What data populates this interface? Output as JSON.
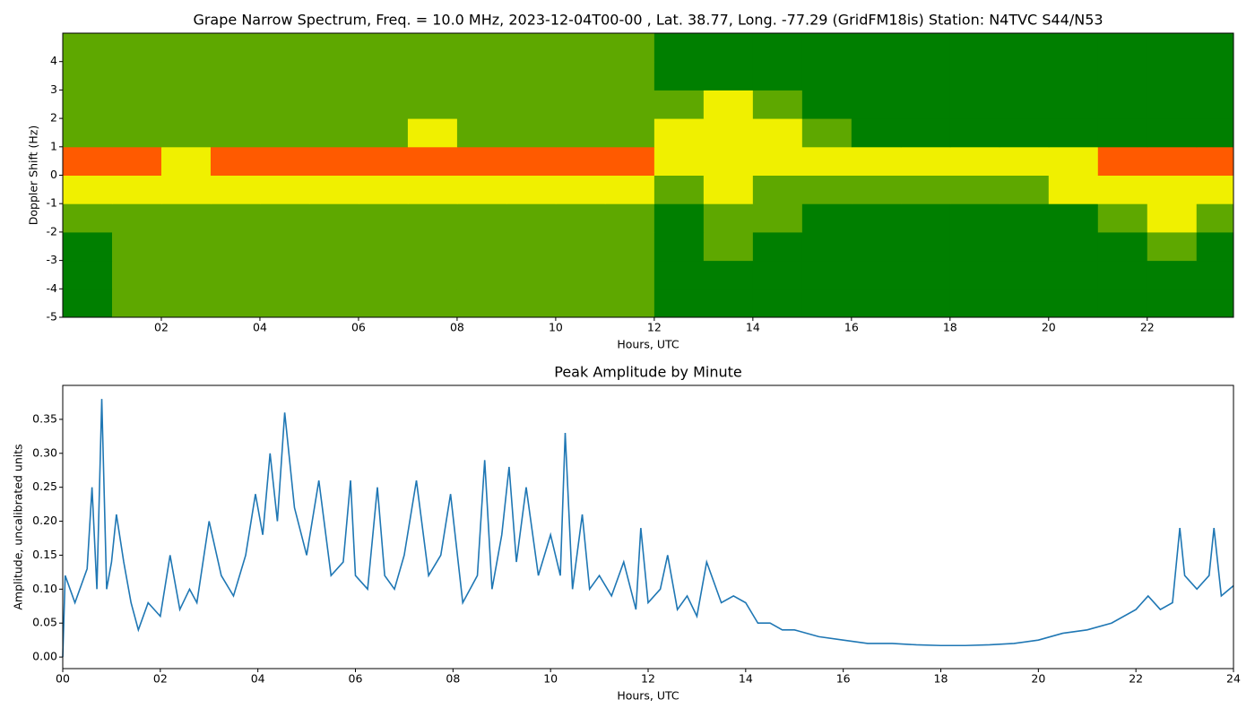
{
  "chart_data": [
    {
      "type": "heatmap",
      "title": "Grape Narrow Spectrum, Freq. = 10.0 MHz, 2023-12-04T00-00 , Lat.  38.77, Long. -77.29 (GridFM18is) Station: N4TVC S44/N53",
      "xlabel": "Hours, UTC",
      "ylabel": "Doppler Shift (Hz)",
      "xlim": [
        0,
        23.75
      ],
      "ylim": [
        -5,
        5
      ],
      "xticks": [
        {
          "value": 2,
          "label": "02"
        },
        {
          "value": 4,
          "label": "04"
        },
        {
          "value": 6,
          "label": "06"
        },
        {
          "value": 8,
          "label": "08"
        },
        {
          "value": 10,
          "label": "10"
        },
        {
          "value": 12,
          "label": "12"
        },
        {
          "value": 14,
          "label": "14"
        },
        {
          "value": 16,
          "label": "16"
        },
        {
          "value": 18,
          "label": "18"
        },
        {
          "value": 20,
          "label": "20"
        },
        {
          "value": 22,
          "label": "22"
        }
      ],
      "yticks": [
        -5,
        -4,
        -3,
        -2,
        -1,
        0,
        1,
        2,
        3,
        4
      ],
      "xbins": [
        0,
        1,
        2,
        3,
        4,
        5,
        6,
        7,
        8,
        9,
        10,
        11,
        12,
        13,
        14,
        15,
        16,
        17,
        18,
        19,
        20,
        21,
        22,
        23,
        23.75
      ],
      "ybins": [
        -5,
        -4,
        -3,
        -2,
        -1,
        0,
        1,
        2,
        3,
        4,
        5
      ],
      "colors": [
        "#007f00",
        "#5ea800",
        "#f0f000",
        "#ff5a00"
      ],
      "z": [
        [
          0,
          1,
          1,
          1,
          1,
          1,
          1,
          1,
          1,
          1,
          1,
          1,
          0,
          0,
          0,
          0,
          0,
          0,
          0,
          0,
          0,
          0,
          0,
          0
        ],
        [
          0,
          1,
          1,
          1,
          1,
          1,
          1,
          1,
          1,
          1,
          1,
          1,
          0,
          0,
          0,
          0,
          0,
          0,
          0,
          0,
          0,
          0,
          0,
          0
        ],
        [
          0,
          1,
          1,
          1,
          1,
          1,
          1,
          1,
          1,
          1,
          1,
          1,
          0,
          1,
          0,
          0,
          0,
          0,
          0,
          0,
          0,
          0,
          1,
          0
        ],
        [
          1,
          1,
          1,
          1,
          1,
          1,
          1,
          1,
          1,
          1,
          1,
          1,
          0,
          1,
          1,
          0,
          0,
          0,
          0,
          0,
          0,
          1,
          2,
          1
        ],
        [
          2,
          2,
          2,
          2,
          2,
          2,
          2,
          2,
          2,
          2,
          2,
          2,
          1,
          2,
          1,
          1,
          1,
          1,
          1,
          1,
          2,
          2,
          2,
          2
        ],
        [
          3,
          3,
          2,
          3,
          3,
          3,
          3,
          3,
          3,
          3,
          3,
          3,
          2,
          2,
          2,
          2,
          2,
          2,
          2,
          2,
          2,
          3,
          3,
          3
        ],
        [
          1,
          1,
          1,
          1,
          1,
          1,
          1,
          2,
          1,
          1,
          1,
          1,
          2,
          2,
          2,
          1,
          0,
          0,
          0,
          0,
          0,
          0,
          0,
          0
        ],
        [
          1,
          1,
          1,
          1,
          1,
          1,
          1,
          1,
          1,
          1,
          1,
          1,
          1,
          2,
          1,
          0,
          0,
          0,
          0,
          0,
          0,
          0,
          0,
          0
        ],
        [
          1,
          1,
          1,
          1,
          1,
          1,
          1,
          1,
          1,
          1,
          1,
          1,
          0,
          0,
          0,
          0,
          0,
          0,
          0,
          0,
          0,
          0,
          0,
          0
        ],
        [
          1,
          1,
          1,
          1,
          1,
          1,
          1,
          1,
          1,
          1,
          1,
          1,
          0,
          0,
          0,
          0,
          0,
          0,
          0,
          0,
          0,
          0,
          0,
          0
        ]
      ]
    },
    {
      "type": "line",
      "title": "Peak Amplitude by Minute",
      "xlabel": "Hours, UTC",
      "ylabel": "Amplitude, uncalibrated units",
      "color": "#1f77b4",
      "xlim": [
        0,
        24
      ],
      "ylim": [
        -0.017,
        0.4
      ],
      "xticks": [
        {
          "value": 0,
          "label": "00"
        },
        {
          "value": 2,
          "label": "02"
        },
        {
          "value": 4,
          "label": "04"
        },
        {
          "value": 6,
          "label": "06"
        },
        {
          "value": 8,
          "label": "08"
        },
        {
          "value": 10,
          "label": "10"
        },
        {
          "value": 12,
          "label": "12"
        },
        {
          "value": 14,
          "label": "14"
        },
        {
          "value": 16,
          "label": "16"
        },
        {
          "value": 18,
          "label": "18"
        },
        {
          "value": 20,
          "label": "20"
        },
        {
          "value": 22,
          "label": "22"
        },
        {
          "value": 24,
          "label": "24"
        }
      ],
      "yticks": [
        {
          "value": 0,
          "label": "0.00"
        },
        {
          "value": 0.05,
          "label": "0.05"
        },
        {
          "value": 0.1,
          "label": "0.10"
        },
        {
          "value": 0.15,
          "label": "0.15"
        },
        {
          "value": 0.2,
          "label": "0.20"
        },
        {
          "value": 0.25,
          "label": "0.25"
        },
        {
          "value": 0.3,
          "label": "0.30"
        },
        {
          "value": 0.35,
          "label": "0.35"
        }
      ],
      "x": [
        0,
        0.05,
        0.25,
        0.5,
        0.6,
        0.7,
        0.8,
        0.9,
        1.0,
        1.1,
        1.25,
        1.4,
        1.55,
        1.75,
        2.0,
        2.2,
        2.4,
        2.6,
        2.75,
        3.0,
        3.25,
        3.5,
        3.75,
        3.95,
        4.1,
        4.25,
        4.4,
        4.55,
        4.75,
        5.0,
        5.25,
        5.5,
        5.75,
        5.9,
        6.0,
        6.25,
        6.45,
        6.6,
        6.8,
        7.0,
        7.25,
        7.5,
        7.75,
        7.95,
        8.2,
        8.5,
        8.65,
        8.8,
        9.0,
        9.15,
        9.3,
        9.5,
        9.75,
        10.0,
        10.2,
        10.3,
        10.45,
        10.65,
        10.8,
        11.0,
        11.25,
        11.5,
        11.75,
        11.85,
        12.0,
        12.25,
        12.4,
        12.6,
        12.8,
        13.0,
        13.2,
        13.5,
        13.75,
        14.0,
        14.25,
        14.5,
        14.75,
        15.0,
        15.5,
        16.0,
        16.5,
        17.0,
        17.5,
        18.0,
        18.5,
        19.0,
        19.5,
        20.0,
        20.5,
        21.0,
        21.5,
        22.0,
        22.25,
        22.5,
        22.75,
        22.9,
        23.0,
        23.25,
        23.5,
        23.6,
        23.75,
        24.0
      ],
      "values": [
        0.0,
        0.12,
        0.08,
        0.13,
        0.25,
        0.1,
        0.38,
        0.1,
        0.14,
        0.21,
        0.14,
        0.08,
        0.04,
        0.08,
        0.06,
        0.15,
        0.07,
        0.1,
        0.08,
        0.2,
        0.12,
        0.09,
        0.15,
        0.24,
        0.18,
        0.3,
        0.2,
        0.36,
        0.22,
        0.15,
        0.26,
        0.12,
        0.14,
        0.26,
        0.12,
        0.1,
        0.25,
        0.12,
        0.1,
        0.15,
        0.26,
        0.12,
        0.15,
        0.24,
        0.08,
        0.12,
        0.29,
        0.1,
        0.18,
        0.28,
        0.14,
        0.25,
        0.12,
        0.18,
        0.12,
        0.33,
        0.1,
        0.21,
        0.1,
        0.12,
        0.09,
        0.14,
        0.07,
        0.19,
        0.08,
        0.1,
        0.15,
        0.07,
        0.09,
        0.06,
        0.14,
        0.08,
        0.09,
        0.08,
        0.05,
        0.05,
        0.04,
        0.04,
        0.03,
        0.025,
        0.02,
        0.02,
        0.018,
        0.017,
        0.017,
        0.018,
        0.02,
        0.025,
        0.035,
        0.04,
        0.05,
        0.07,
        0.09,
        0.07,
        0.08,
        0.19,
        0.12,
        0.1,
        0.12,
        0.19,
        0.09,
        0.105
      ]
    }
  ]
}
